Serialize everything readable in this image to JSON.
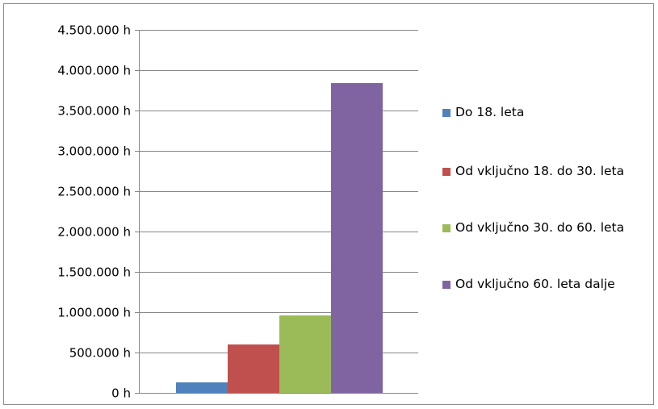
{
  "chart_data": {
    "type": "bar",
    "title": "",
    "xlabel": "",
    "ylabel": "",
    "ylim": [
      0,
      4500000
    ],
    "y_tick_values": [
      0,
      500000,
      1000000,
      1500000,
      2000000,
      2500000,
      3000000,
      3500000,
      4000000,
      4500000
    ],
    "y_tick_labels": [
      "0 h",
      "500.000 h",
      "1.000.000 h",
      "1.500.000 h",
      "2.000.000 h",
      "2.500.000 h",
      "3.000.000 h",
      "3.500.000 h",
      "4.000.000 h",
      "4.500.000 h"
    ],
    "grid": true,
    "legend_position": "right",
    "series": [
      {
        "name": "Do 18. leta",
        "value": 130000,
        "color": "#4F81BD"
      },
      {
        "name": "Od vključno 18. do 30. leta",
        "value": 600000,
        "color": "#C0504D"
      },
      {
        "name": "Od vključno 30. do 60. leta",
        "value": 960000,
        "color": "#9BBB59"
      },
      {
        "name": "Od vključno 60. leta dalje",
        "value": 3840000,
        "color": "#8064A2"
      }
    ]
  }
}
